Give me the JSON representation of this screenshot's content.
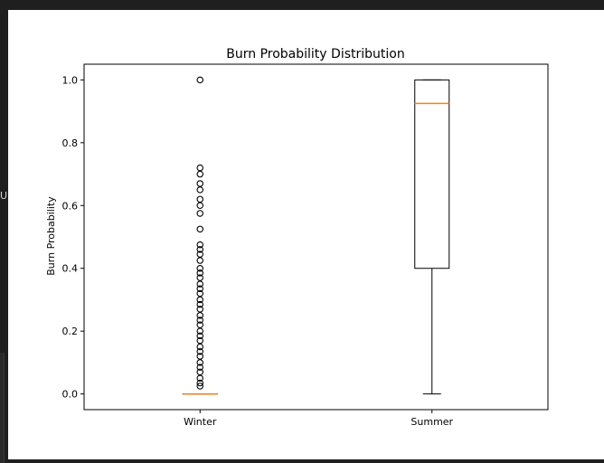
{
  "side_panel": {
    "glyph": "UI"
  },
  "chart_data": {
    "type": "box",
    "title": "Burn Probability Distribution",
    "xlabel": "",
    "ylabel": "Burn Probability",
    "categories": [
      "Winter",
      "Summer"
    ],
    "ylim": [
      -0.05,
      1.05
    ],
    "yticks": [
      0.0,
      0.2,
      0.4,
      0.6,
      0.8,
      1.0
    ],
    "ytick_labels": [
      "0.0",
      "0.2",
      "0.4",
      "0.6",
      "0.8",
      "1.0"
    ],
    "grid": false,
    "colors": {
      "box_line": "#000000",
      "median": "#ff7f0e",
      "flier": "#000000"
    },
    "boxes": [
      {
        "category": "Winter",
        "whisker_low": 0.0,
        "q1": 0.0,
        "median": 0.0,
        "q3": 0.0,
        "whisker_high": 0.0,
        "fliers": [
          1.0,
          0.72,
          0.7,
          0.67,
          0.65,
          0.62,
          0.6,
          0.575,
          0.525,
          0.475,
          0.46,
          0.445,
          0.425,
          0.4,
          0.385,
          0.37,
          0.35,
          0.335,
          0.32,
          0.3,
          0.285,
          0.27,
          0.25,
          0.235,
          0.22,
          0.2,
          0.185,
          0.17,
          0.15,
          0.135,
          0.12,
          0.1,
          0.085,
          0.07,
          0.05,
          0.035,
          0.025
        ]
      },
      {
        "category": "Summer",
        "whisker_low": 0.0,
        "q1": 0.4,
        "median": 0.925,
        "q3": 1.0,
        "whisker_high": 1.0,
        "fliers": []
      }
    ]
  }
}
